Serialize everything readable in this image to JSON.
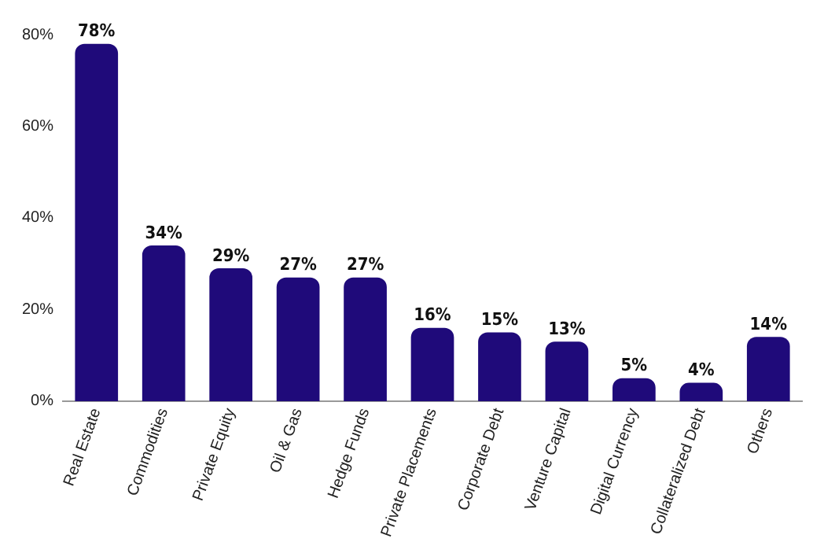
{
  "chart_data": {
    "type": "bar",
    "categories": [
      "Real Estate",
      "Commodities",
      "Private Equity",
      "Oil & Gas",
      "Hedge Funds",
      "Private Placements",
      "Corporate Debt",
      "Venture Capital",
      "Digital Currency",
      "Collateralized Debt",
      "Others"
    ],
    "values": [
      78,
      34,
      29,
      27,
      27,
      16,
      15,
      13,
      5,
      4,
      14
    ],
    "value_labels": [
      "78%",
      "34%",
      "29%",
      "27%",
      "27%",
      "16%",
      "15%",
      "13%",
      "5%",
      "4%",
      "14%"
    ],
    "color": "#1f0a7a",
    "ylim": [
      0,
      80
    ],
    "yticks": [
      {
        "value": 0,
        "label": "0%"
      },
      {
        "value": 20,
        "label": "20%"
      },
      {
        "value": 40,
        "label": "40%"
      },
      {
        "value": 60,
        "label": "60%"
      },
      {
        "value": 80,
        "label": "80%"
      }
    ],
    "grid": false,
    "legend": false
  }
}
